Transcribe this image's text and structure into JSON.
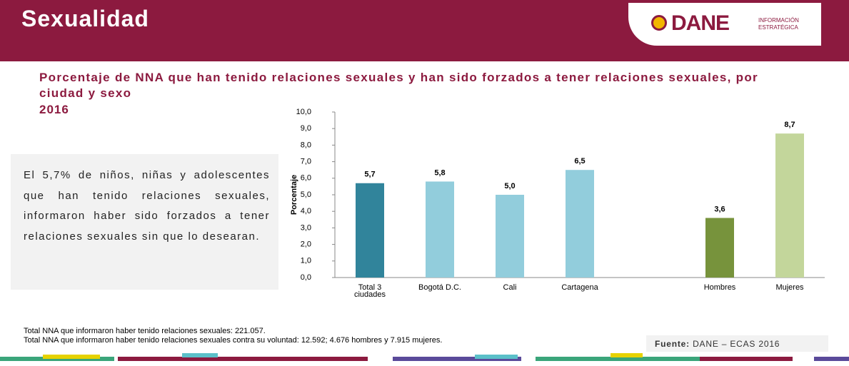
{
  "header": {
    "title": "Sexualidad",
    "logo": "DANE",
    "logo_tagline": "INFORMACIÓN ESTRATÉGICA"
  },
  "chart_data": {
    "type": "bar",
    "title": "Porcentaje de NNA que han tenido relaciones sexuales y han sido forzados a tener relaciones sexuales, por ciudad y sexo",
    "subtitle": "2016",
    "y_label": "Porcentaje",
    "categories": [
      "Total 3 ciudades",
      "Bogotá D.C.",
      "Cali",
      "Cartagena",
      null,
      "Hombres",
      "Mujeres"
    ],
    "values": [
      5.7,
      5.8,
      5.0,
      6.5,
      null,
      3.6,
      8.7
    ],
    "value_labels": [
      "5,7",
      "5,8",
      "5,0",
      "6,5",
      null,
      "3,6",
      "8,7"
    ],
    "colors": [
      "#31849b",
      "#92cddc",
      "#92cddc",
      "#92cddc",
      null,
      "#77933c",
      "#c3d69b"
    ],
    "ylim": [
      0,
      10
    ],
    "yticks": [
      {
        "value": 0,
        "label": "0,0"
      },
      {
        "value": 1,
        "label": "1,0"
      },
      {
        "value": 2,
        "label": "2,0"
      },
      {
        "value": 3,
        "label": "3,0"
      },
      {
        "value": 4,
        "label": "4,0"
      },
      {
        "value": 5,
        "label": "5,0"
      },
      {
        "value": 6,
        "label": "6,0"
      },
      {
        "value": 7,
        "label": "7,0"
      },
      {
        "value": 8,
        "label": "8,0"
      },
      {
        "value": 9,
        "label": "9,0"
      },
      {
        "value": 10,
        "label": "10,0"
      }
    ],
    "grid": false
  },
  "highlight": "El 5,7% de niños, niñas y adolescentes que han tenido relaciones sexuales, informaron haber sido forzados a tener relaciones sexuales sin que lo desearan.",
  "notes": [
    "Total NNA que informaron haber tenido relaciones sexuales: 221.057.",
    "Total NNA que informaron haber tenido relaciones  sexuales contra su voluntad: 12.592; 4.676 hombres y 7.915 mujeres."
  ],
  "source": {
    "label": "Fuente:",
    "text": "DANE – ECAS 2016"
  }
}
